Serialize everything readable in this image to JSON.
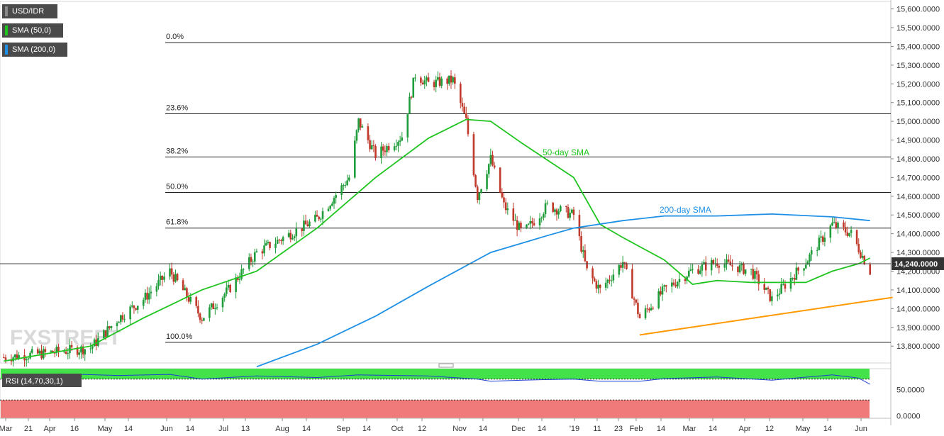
{
  "chart_data": [
    {
      "type": "candlestick",
      "symbol": "USD/IDR",
      "x_tick_labels": [
        "Mar",
        "21",
        "Apr",
        "16",
        "May",
        "14",
        "Jun",
        "14",
        "Jul",
        "13",
        "Aug",
        "14",
        "Sep",
        "14",
        "Oct",
        "12",
        "Nov",
        "14",
        "Dec",
        "14",
        "'19",
        "11",
        "23",
        "Feb",
        "14",
        "Mar",
        "14",
        "Apr",
        "12",
        "May",
        "14",
        "Jun"
      ],
      "y_tick_labels": [
        "15,600.0000",
        "15,500.0000",
        "15,400.0000",
        "15,300.0000",
        "15,200.0000",
        "15,100.0000",
        "15,000.0000",
        "14,900.0000",
        "14,800.0000",
        "14,700.0000",
        "14,600.0000",
        "14,500.0000",
        "14,400.0000",
        "14,300.0000",
        "14,200.0000",
        "14,100.0000",
        "14,000.0000",
        "13,900.0000",
        "13,800.0000"
      ],
      "ylim": [
        13710,
        15640
      ],
      "last_price": 14240,
      "last_price_label": "14,240.0000",
      "price_path": [
        [
          "2018-03-01",
          13740
        ],
        [
          "2018-03-21",
          13760
        ],
        [
          "2018-04-16",
          13790
        ],
        [
          "2018-05-01",
          13950
        ],
        [
          "2018-05-14",
          14050
        ],
        [
          "2018-05-28",
          14200
        ],
        [
          "2018-06-14",
          13950
        ],
        [
          "2018-06-28",
          14100
        ],
        [
          "2018-07-13",
          14300
        ],
        [
          "2018-07-31",
          14400
        ],
        [
          "2018-08-14",
          14480
        ],
        [
          "2018-08-31",
          14700
        ],
        [
          "2018-09-05",
          15000
        ],
        [
          "2018-09-14",
          14820
        ],
        [
          "2018-09-28",
          14920
        ],
        [
          "2018-10-05",
          15250
        ],
        [
          "2018-10-12",
          15200
        ],
        [
          "2018-10-25",
          15220
        ],
        [
          "2018-11-01",
          15000
        ],
        [
          "2018-11-07",
          14600
        ],
        [
          "2018-11-14",
          14800
        ],
        [
          "2018-11-21",
          14550
        ],
        [
          "2018-12-01",
          14400
        ],
        [
          "2018-12-14",
          14550
        ],
        [
          "2018-12-28",
          14500
        ],
        [
          "2019-01-04",
          14200
        ],
        [
          "2019-01-11",
          14100
        ],
        [
          "2019-01-23",
          14250
        ],
        [
          "2019-02-01",
          13950
        ],
        [
          "2019-02-14",
          14100
        ],
        [
          "2019-02-28",
          14200
        ],
        [
          "2019-03-14",
          14250
        ],
        [
          "2019-04-01",
          14200
        ],
        [
          "2019-04-12",
          14050
        ],
        [
          "2019-04-30",
          14250
        ],
        [
          "2019-05-14",
          14450
        ],
        [
          "2019-05-24",
          14400
        ],
        [
          "2019-06-03",
          14200
        ]
      ],
      "series": [
        {
          "name": "SMA (50,0)",
          "label": "50-day SMA",
          "color": "#1fc41f",
          "points": [
            [
              "2018-03-01",
              13720
            ],
            [
              "2018-04-16",
              13800
            ],
            [
              "2018-05-14",
              13950
            ],
            [
              "2018-06-14",
              14100
            ],
            [
              "2018-07-13",
              14200
            ],
            [
              "2018-08-14",
              14430
            ],
            [
              "2018-09-14",
              14700
            ],
            [
              "2018-10-12",
              14910
            ],
            [
              "2018-11-01",
              15010
            ],
            [
              "2018-11-14",
              15000
            ],
            [
              "2018-12-01",
              14880
            ],
            [
              "2018-12-28",
              14700
            ],
            [
              "2019-01-11",
              14450
            ],
            [
              "2019-01-23",
              14380
            ],
            [
              "2019-02-14",
              14260
            ],
            [
              "2019-03-01",
              14130
            ],
            [
              "2019-03-14",
              14150
            ],
            [
              "2019-04-01",
              14140
            ],
            [
              "2019-04-30",
              14140
            ],
            [
              "2019-05-14",
              14200
            ],
            [
              "2019-05-28",
              14240
            ],
            [
              "2019-06-03",
              14270
            ]
          ]
        },
        {
          "name": "SMA (200,0)",
          "label": "200-day SMA",
          "color": "#1e90e6",
          "points": [
            [
              "2018-07-13",
              13690
            ],
            [
              "2018-08-14",
              13810
            ],
            [
              "2018-09-14",
              13960
            ],
            [
              "2018-10-12",
              14120
            ],
            [
              "2018-11-14",
              14300
            ],
            [
              "2018-12-14",
              14390
            ],
            [
              "2018-12-28",
              14430
            ],
            [
              "2019-01-23",
              14470
            ],
            [
              "2019-02-14",
              14495
            ],
            [
              "2019-03-14",
              14495
            ],
            [
              "2019-04-12",
              14505
            ],
            [
              "2019-05-14",
              14490
            ],
            [
              "2019-06-03",
              14470
            ]
          ]
        }
      ],
      "fibonacci_levels": [
        {
          "label": "0.0%",
          "value": 15420
        },
        {
          "label": "23.6%",
          "value": 15040
        },
        {
          "label": "38.2%",
          "value": 14810
        },
        {
          "label": "50.0%",
          "value": 14620
        },
        {
          "label": "61.8%",
          "value": 14430
        },
        {
          "label": "100.0%",
          "value": 13820
        }
      ],
      "trendline": {
        "color": "#ff9900",
        "from": [
          "2019-02-01",
          13860
        ],
        "to": [
          "2019-06-15",
          14060
        ]
      }
    },
    {
      "type": "line",
      "title": "RSI (14,70,30,1)",
      "y_tick_labels": [
        "50.0000",
        "0.0000"
      ],
      "overbought": 70,
      "oversold": 30,
      "ylim": [
        -5,
        90
      ],
      "series": [
        {
          "name": "RSI",
          "color": "#1e3fd0",
          "points": [
            [
              "2018-03-01",
              78
            ],
            [
              "2018-04-01",
              80
            ],
            [
              "2018-05-01",
              77
            ],
            [
              "2018-05-28",
              79
            ],
            [
              "2018-06-14",
              70
            ],
            [
              "2018-07-13",
              76
            ],
            [
              "2018-08-14",
              73
            ],
            [
              "2018-09-05",
              78
            ],
            [
              "2018-10-12",
              76
            ],
            [
              "2018-11-07",
              70
            ],
            [
              "2018-11-14",
              66
            ],
            [
              "2018-12-01",
              68
            ],
            [
              "2018-12-28",
              70
            ],
            [
              "2019-01-11",
              66
            ],
            [
              "2019-02-01",
              66
            ],
            [
              "2019-02-14",
              71
            ],
            [
              "2019-03-14",
              74
            ],
            [
              "2019-04-12",
              68
            ],
            [
              "2019-05-01",
              74
            ],
            [
              "2019-05-14",
              78
            ],
            [
              "2019-05-28",
              72
            ],
            [
              "2019-06-03",
              60
            ]
          ]
        }
      ]
    }
  ],
  "legend": {
    "symbol": "USD/IDR",
    "sma50": "SMA (50,0)",
    "sma200": "SMA (200,0)"
  },
  "watermark": "FXSTREET",
  "colors": {
    "up": "#1f9d3a",
    "down": "#c0392b",
    "overbought_zone": "#44e24a",
    "oversold_zone": "#f07a7a",
    "last_price_tag": "#333333"
  }
}
